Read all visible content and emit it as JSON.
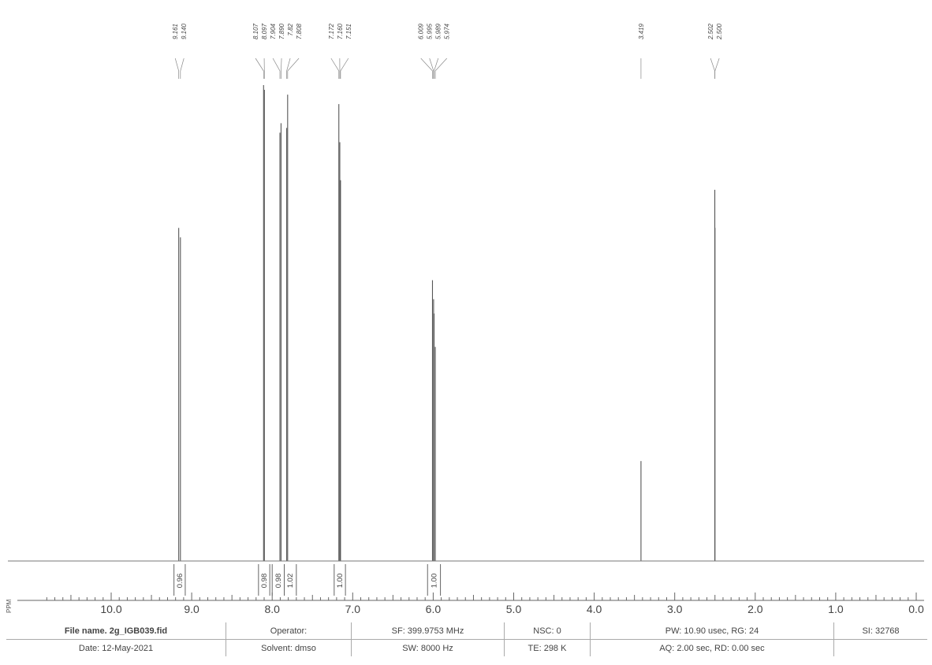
{
  "chart_data": {
    "type": "line",
    "xlabel": "PPM",
    "xlim": [
      10.8,
      0.0
    ],
    "x_ticks": [
      "10.0",
      "9.0",
      "8.0",
      "7.0",
      "6.0",
      "5.0",
      "4.0",
      "3.0",
      "2.0",
      "1.0",
      "0.0"
    ],
    "peaks": [
      {
        "ppm": 9.161,
        "height": 0.7
      },
      {
        "ppm": 9.14,
        "height": 0.68
      },
      {
        "ppm": 8.107,
        "height": 1.0
      },
      {
        "ppm": 8.097,
        "height": 0.99
      },
      {
        "ppm": 7.904,
        "height": 0.9
      },
      {
        "ppm": 7.89,
        "height": 0.92
      },
      {
        "ppm": 7.82,
        "height": 0.91
      },
      {
        "ppm": 7.808,
        "height": 0.98
      },
      {
        "ppm": 7.172,
        "height": 0.96
      },
      {
        "ppm": 7.16,
        "height": 0.88
      },
      {
        "ppm": 7.151,
        "height": 0.8
      },
      {
        "ppm": 6.009,
        "height": 0.59
      },
      {
        "ppm": 5.995,
        "height": 0.55
      },
      {
        "ppm": 5.989,
        "height": 0.52
      },
      {
        "ppm": 5.974,
        "height": 0.45
      },
      {
        "ppm": 3.419,
        "height": 0.21
      },
      {
        "ppm": 2.502,
        "height": 0.78
      },
      {
        "ppm": 2.5,
        "height": 0.7
      }
    ],
    "peak_labels": [
      "9.161",
      "9.140",
      "8.107",
      "8.097",
      "7.904",
      "7.890",
      "7.82",
      "7.808",
      "7.172",
      "7.160",
      "7.151",
      "6.009",
      "5.995",
      "5.989",
      "5.974",
      "3.419",
      "2.502",
      "2.500"
    ],
    "integrals": [
      {
        "from": 9.22,
        "to": 9.08,
        "value": "0.96"
      },
      {
        "from": 8.17,
        "to": 8.03,
        "value": "0.98"
      },
      {
        "from": 8.0,
        "to": 7.85,
        "value": "0.98"
      },
      {
        "from": 7.85,
        "to": 7.7,
        "value": "1.02"
      },
      {
        "from": 7.23,
        "to": 7.09,
        "value": "1.00"
      },
      {
        "from": 6.07,
        "to": 5.91,
        "value": "1.00"
      }
    ]
  },
  "info": {
    "file_name": "File name. 2g_IGB039.fid",
    "date": "Date: 12-May-2021",
    "operator": "Operator:",
    "solvent": "Solvent: dmso",
    "sf": "SF: 399.9753 MHz",
    "sw": "SW: 8000 Hz",
    "nsc": "NSC: 0",
    "te": "TE: 298 K",
    "pw": "PW: 10.90 usec, RG: 24",
    "aq": "AQ: 2.00 sec, RD: 0.00 sec",
    "si": "SI: 32768"
  }
}
